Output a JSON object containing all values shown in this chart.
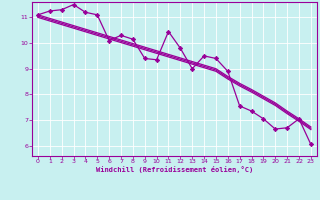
{
  "xlabel": "Windchill (Refroidissement éolien,°C)",
  "bg_color": "#c8f0f0",
  "line_color": "#990099",
  "xlim": [
    -0.5,
    23.5
  ],
  "ylim": [
    5.6,
    11.6
  ],
  "yticks": [
    6,
    7,
    8,
    9,
    10,
    11
  ],
  "xticks": [
    0,
    1,
    2,
    3,
    4,
    5,
    6,
    7,
    8,
    9,
    10,
    11,
    12,
    13,
    14,
    15,
    16,
    17,
    18,
    19,
    20,
    21,
    22,
    23
  ],
  "data_x": [
    0,
    1,
    2,
    3,
    4,
    5,
    6,
    7,
    8,
    9,
    10,
    11,
    12,
    13,
    14,
    15,
    16,
    17,
    18,
    19,
    20,
    21,
    22,
    23
  ],
  "data_y_main": [
    11.1,
    11.25,
    11.3,
    11.5,
    11.2,
    11.1,
    10.1,
    10.3,
    10.15,
    9.4,
    9.35,
    10.45,
    9.8,
    9.0,
    9.5,
    9.4,
    8.9,
    7.55,
    7.35,
    7.05,
    6.65,
    6.7,
    7.05,
    6.05
  ],
  "data_y_reg1": [
    11.05,
    10.91,
    10.77,
    10.63,
    10.49,
    10.35,
    10.21,
    10.07,
    9.93,
    9.79,
    9.65,
    9.51,
    9.37,
    9.23,
    9.09,
    8.95,
    8.65,
    8.38,
    8.14,
    7.88,
    7.62,
    7.3,
    7.0,
    6.68
  ],
  "data_y_reg2": [
    11.1,
    10.96,
    10.82,
    10.68,
    10.54,
    10.4,
    10.26,
    10.12,
    9.98,
    9.84,
    9.7,
    9.56,
    9.42,
    9.28,
    9.14,
    9.0,
    8.7,
    8.43,
    8.19,
    7.93,
    7.67,
    7.35,
    7.05,
    6.73
  ],
  "data_y_reg3": [
    11.0,
    10.86,
    10.72,
    10.58,
    10.44,
    10.3,
    10.16,
    10.02,
    9.88,
    9.74,
    9.6,
    9.46,
    9.32,
    9.18,
    9.04,
    8.9,
    8.6,
    8.33,
    8.09,
    7.83,
    7.57,
    7.25,
    6.95,
    6.63
  ]
}
